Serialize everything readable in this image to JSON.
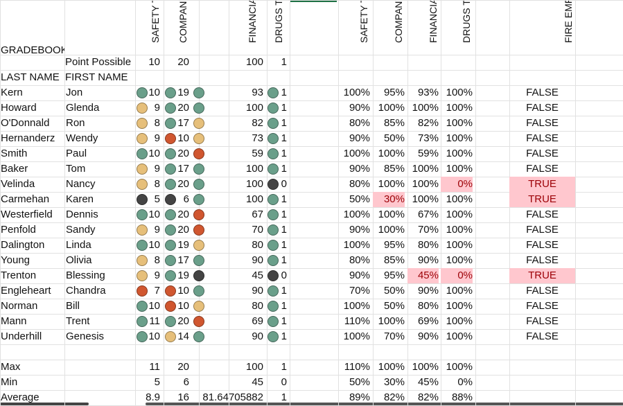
{
  "colors": {
    "green": "#6a9f8a",
    "yellow": "#e6bf7a",
    "red": "#d0562f",
    "black": "#444444",
    "pink": "#ffc7ce",
    "pinktext": "#9c0006"
  },
  "headers": {
    "gradebook": "GRADEBOOK",
    "safety": "SAFETY TES",
    "company": "COMPANY I",
    "financial": "FINANCIAL",
    "drugs": "DRUGS TES",
    "safety2": "SAFETY TES",
    "company2": "COMPANY I",
    "financial2": "FINANCIAL",
    "drugs2": "DRUGS TES",
    "fire": "FIRE EMPLO"
  },
  "points": {
    "label": "Point Possible",
    "safety": "10",
    "company": "20",
    "financial": "100",
    "drugs": "1"
  },
  "colnames": {
    "last": "LAST NAME",
    "first": "FIRST NAME"
  },
  "rows": [
    {
      "last": "Kern",
      "first": "Jon",
      "s": "10",
      "sd": "green",
      "c": "19",
      "cd": "green",
      "fd": "green",
      "f": "93",
      "d": "1",
      "dd": "green",
      "sp": "100%",
      "cp": "95%",
      "fp": "93%",
      "dp": "100%",
      "fire": "FALSE"
    },
    {
      "last": "Howard",
      "first": "Glenda",
      "s": "9",
      "sd": "yellow",
      "c": "20",
      "cd": "green",
      "fd": "green",
      "f": "100",
      "d": "1",
      "dd": "green",
      "sp": "90%",
      "cp": "100%",
      "fp": "100%",
      "dp": "100%",
      "fire": "FALSE"
    },
    {
      "last": "O'Donnald",
      "first": "Ron",
      "s": "8",
      "sd": "yellow",
      "c": "17",
      "cd": "green",
      "fd": "yellow",
      "f": "82",
      "d": "1",
      "dd": "green",
      "sp": "80%",
      "cp": "85%",
      "fp": "82%",
      "dp": "100%",
      "fire": "FALSE"
    },
    {
      "last": "Hernanderz",
      "first": "Wendy",
      "s": "9",
      "sd": "yellow",
      "c": "10",
      "cd": "red",
      "fd": "yellow",
      "f": "73",
      "d": "1",
      "dd": "green",
      "sp": "90%",
      "cp": "50%",
      "fp": "73%",
      "dp": "100%",
      "fire": "FALSE"
    },
    {
      "last": "Smith",
      "first": "Paul",
      "s": "10",
      "sd": "green",
      "c": "20",
      "cd": "green",
      "fd": "red",
      "f": "59",
      "d": "1",
      "dd": "green",
      "sp": "100%",
      "cp": "100%",
      "fp": "59%",
      "dp": "100%",
      "fire": "FALSE"
    },
    {
      "last": "Baker",
      "first": "Tom",
      "s": "9",
      "sd": "yellow",
      "c": "17",
      "cd": "green",
      "fd": "green",
      "f": "100",
      "d": "1",
      "dd": "green",
      "sp": "90%",
      "cp": "85%",
      "fp": "100%",
      "dp": "100%",
      "fire": "FALSE"
    },
    {
      "last": "Velinda",
      "first": "Nancy",
      "s": "8",
      "sd": "yellow",
      "c": "20",
      "cd": "green",
      "fd": "green",
      "f": "100",
      "d": "0",
      "dd": "black",
      "sp": "80%",
      "cp": "100%",
      "fp": "100%",
      "dp": "0%",
      "fire": "TRUE",
      "pinkD": true,
      "pinkFire": true
    },
    {
      "last": "Carmehan",
      "first": "Karen",
      "s": "5",
      "sd": "black",
      "c": "6",
      "cd": "black",
      "fd": "green",
      "f": "100",
      "d": "1",
      "dd": "green",
      "sp": "50%",
      "cp": "30%",
      "fp": "100%",
      "dp": "100%",
      "fire": "TRUE",
      "pinkC": true,
      "pinkFire": true
    },
    {
      "last": "Westerfield",
      "first": "Dennis",
      "s": "10",
      "sd": "green",
      "c": "20",
      "cd": "green",
      "fd": "red",
      "f": "67",
      "d": "1",
      "dd": "green",
      "sp": "100%",
      "cp": "100%",
      "fp": "67%",
      "dp": "100%",
      "fire": "FALSE"
    },
    {
      "last": "Penfold",
      "first": "Sandy",
      "s": "9",
      "sd": "yellow",
      "c": "20",
      "cd": "green",
      "fd": "red",
      "f": "70",
      "d": "1",
      "dd": "green",
      "sp": "90%",
      "cp": "100%",
      "fp": "70%",
      "dp": "100%",
      "fire": "FALSE"
    },
    {
      "last": "Dalington",
      "first": "Linda",
      "s": "10",
      "sd": "green",
      "c": "19",
      "cd": "green",
      "fd": "yellow",
      "f": "80",
      "d": "1",
      "dd": "green",
      "sp": "100%",
      "cp": "95%",
      "fp": "80%",
      "dp": "100%",
      "fire": "FALSE"
    },
    {
      "last": "Young",
      "first": "Olivia",
      "s": "8",
      "sd": "yellow",
      "c": "17",
      "cd": "green",
      "fd": "green",
      "f": "90",
      "d": "1",
      "dd": "green",
      "sp": "80%",
      "cp": "85%",
      "fp": "90%",
      "dp": "100%",
      "fire": "FALSE"
    },
    {
      "last": "Trenton",
      "first": "Blessing",
      "s": "9",
      "sd": "yellow",
      "c": "19",
      "cd": "green",
      "fd": "black",
      "f": "45",
      "d": "0",
      "dd": "black",
      "sp": "90%",
      "cp": "95%",
      "fp": "45%",
      "dp": "0%",
      "fire": "TRUE",
      "pinkF": true,
      "pinkD": true,
      "pinkFire": true
    },
    {
      "last": "Engleheart",
      "first": "Chandra",
      "s": "7",
      "sd": "red",
      "c": "10",
      "cd": "red",
      "fd": "green",
      "f": "90",
      "d": "1",
      "dd": "green",
      "sp": "70%",
      "cp": "50%",
      "fp": "90%",
      "dp": "100%",
      "fire": "FALSE"
    },
    {
      "last": "Norman",
      "first": "Bill",
      "s": "10",
      "sd": "green",
      "c": "10",
      "cd": "red",
      "fd": "yellow",
      "f": "80",
      "d": "1",
      "dd": "green",
      "sp": "100%",
      "cp": "50%",
      "fp": "80%",
      "dp": "100%",
      "fire": "FALSE"
    },
    {
      "last": "Mann",
      "first": "Trent",
      "s": "11",
      "sd": "green",
      "c": "20",
      "cd": "green",
      "fd": "red",
      "f": "69",
      "d": "1",
      "dd": "green",
      "sp": "110%",
      "cp": "100%",
      "fp": "69%",
      "dp": "100%",
      "fire": "FALSE"
    },
    {
      "last": "Underhill",
      "first": "Genesis",
      "s": "10",
      "sd": "green",
      "c": "14",
      "cd": "yellow",
      "fd": "green",
      "f": "90",
      "d": "1",
      "dd": "green",
      "sp": "100%",
      "cp": "70%",
      "fp": "90%",
      "dp": "100%",
      "fire": "FALSE"
    }
  ],
  "stats": [
    {
      "label": "Max",
      "s": "11",
      "c": "20",
      "f": "100",
      "d": "1",
      "sp": "110%",
      "cp": "100%",
      "fp": "100%",
      "dp": "100%"
    },
    {
      "label": "Min",
      "s": "5",
      "c": "6",
      "f": "45",
      "d": "0",
      "sp": "50%",
      "cp": "30%",
      "fp": "45%",
      "dp": "0%"
    },
    {
      "label": "Average",
      "s": "8.9",
      "c": "16",
      "f": "81.64705882",
      "d": "1",
      "sp": "89%",
      "cp": "82%",
      "fp": "82%",
      "dp": "88%"
    }
  ]
}
